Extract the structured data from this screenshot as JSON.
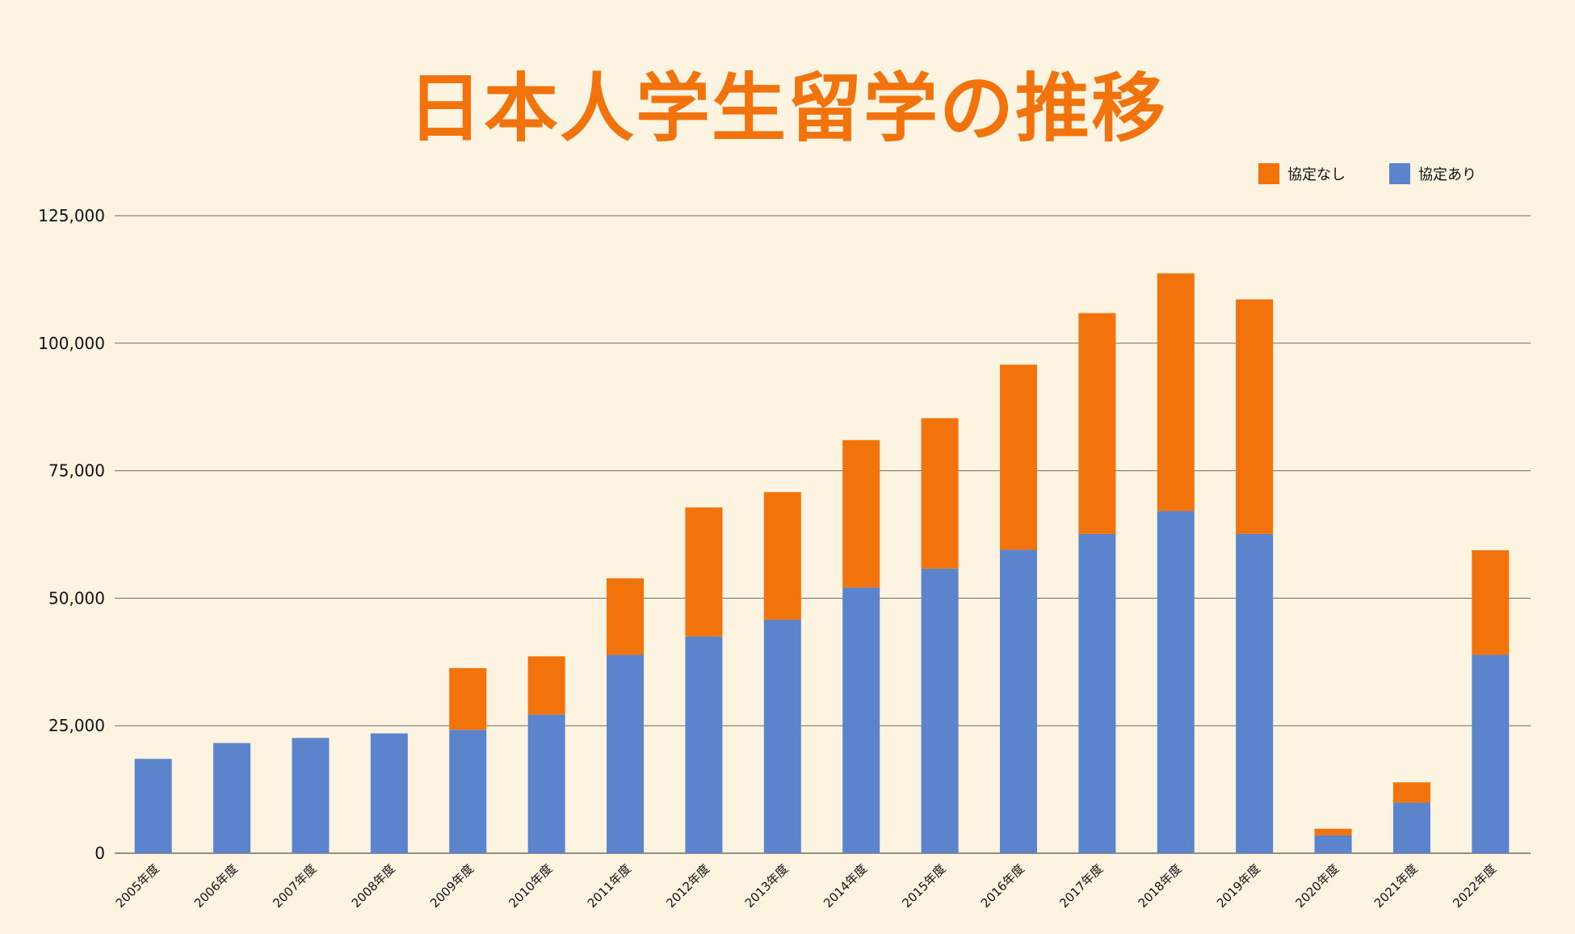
{
  "chart_data": {
    "type": "bar",
    "stacked": true,
    "title": "日本人学生留学の推移",
    "xlabel": "",
    "ylabel": "",
    "categories": [
      "2005年度",
      "2006年度",
      "2007年度",
      "2008年度",
      "2009年度",
      "2010年度",
      "2011年度",
      "2012年度",
      "2013年度",
      "2014年度",
      "2015年度",
      "2016年度",
      "2017年度",
      "2018年度",
      "2019年度",
      "2020年度",
      "2021年度",
      "2022年度"
    ],
    "series": [
      {
        "name": "協定あり",
        "color": "#5b84cc",
        "values": [
          18500,
          21600,
          22600,
          23500,
          24200,
          27200,
          38900,
          42500,
          45800,
          52100,
          55800,
          59500,
          62600,
          67100,
          62600,
          3500,
          9900,
          38900
        ]
      },
      {
        "name": "協定なし",
        "color": "#f2720c",
        "values": [
          0,
          0,
          0,
          0,
          12100,
          11400,
          15000,
          25300,
          25000,
          28900,
          29500,
          36300,
          43300,
          46600,
          46000,
          1300,
          4000,
          20500
        ]
      }
    ],
    "ylim": [
      0,
      125000
    ],
    "yticks": [
      0,
      25000,
      50000,
      75000,
      100000,
      125000
    ],
    "ytick_labels": [
      "0",
      "25,000",
      "50,000",
      "75,000",
      "100,000",
      "125,000"
    ],
    "grid": true,
    "legend_position": "top-right"
  },
  "legend": {
    "items": [
      {
        "label": "協定なし",
        "color": "#f2720c"
      },
      {
        "label": "協定あり",
        "color": "#5b84cc"
      }
    ]
  }
}
